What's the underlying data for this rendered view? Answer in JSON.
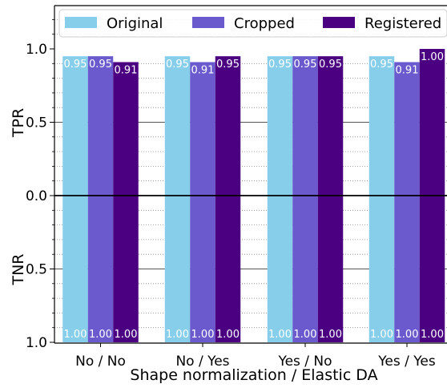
{
  "chart_data": {
    "type": "bar",
    "categories": [
      "No / No",
      "No / Yes",
      "Yes / No",
      "Yes / Yes"
    ],
    "xlabel": "Shape normalization / Elastic DA",
    "ylabel_top": "TPR",
    "ylabel_bottom": "TNR",
    "yticks_top": [
      1.0,
      0.5,
      0.0
    ],
    "yticks_bottom": [
      0.5,
      1.0
    ],
    "ytick_labels_top": [
      "1.0",
      "0.5",
      "0.0"
    ],
    "ytick_labels_bottom": [
      "0.5",
      "1.0"
    ],
    "ylim": [
      -1.0,
      1.0
    ],
    "legend_placement": "top",
    "grid": true,
    "series": [
      {
        "name": "Original",
        "color": "#87ceeb",
        "tpr": [
          0.95,
          0.95,
          0.95,
          0.95
        ],
        "tnr": [
          1.0,
          1.0,
          1.0,
          1.0
        ],
        "tpr_labels": [
          "0.95",
          "0.95",
          "0.95",
          "0.95"
        ],
        "tnr_labels": [
          "1.00",
          "1.00",
          "1.00",
          "1.00"
        ]
      },
      {
        "name": "Cropped",
        "color": "#6a5acd",
        "tpr": [
          0.95,
          0.91,
          0.95,
          0.91
        ],
        "tnr": [
          1.0,
          1.0,
          1.0,
          1.0
        ],
        "tpr_labels": [
          "0.95",
          "0.91",
          "0.95",
          "0.91"
        ],
        "tnr_labels": [
          "1.00",
          "1.00",
          "1.00",
          "1.00"
        ]
      },
      {
        "name": "Registered",
        "color": "#4b0082",
        "tpr": [
          0.91,
          0.95,
          0.95,
          1.0
        ],
        "tnr": [
          1.0,
          1.0,
          1.0,
          1.0
        ],
        "tpr_labels": [
          "0.91",
          "0.95",
          "0.95",
          "1.00"
        ],
        "tnr_labels": [
          "1.00",
          "1.00",
          "1.00",
          "1.00"
        ]
      }
    ]
  }
}
